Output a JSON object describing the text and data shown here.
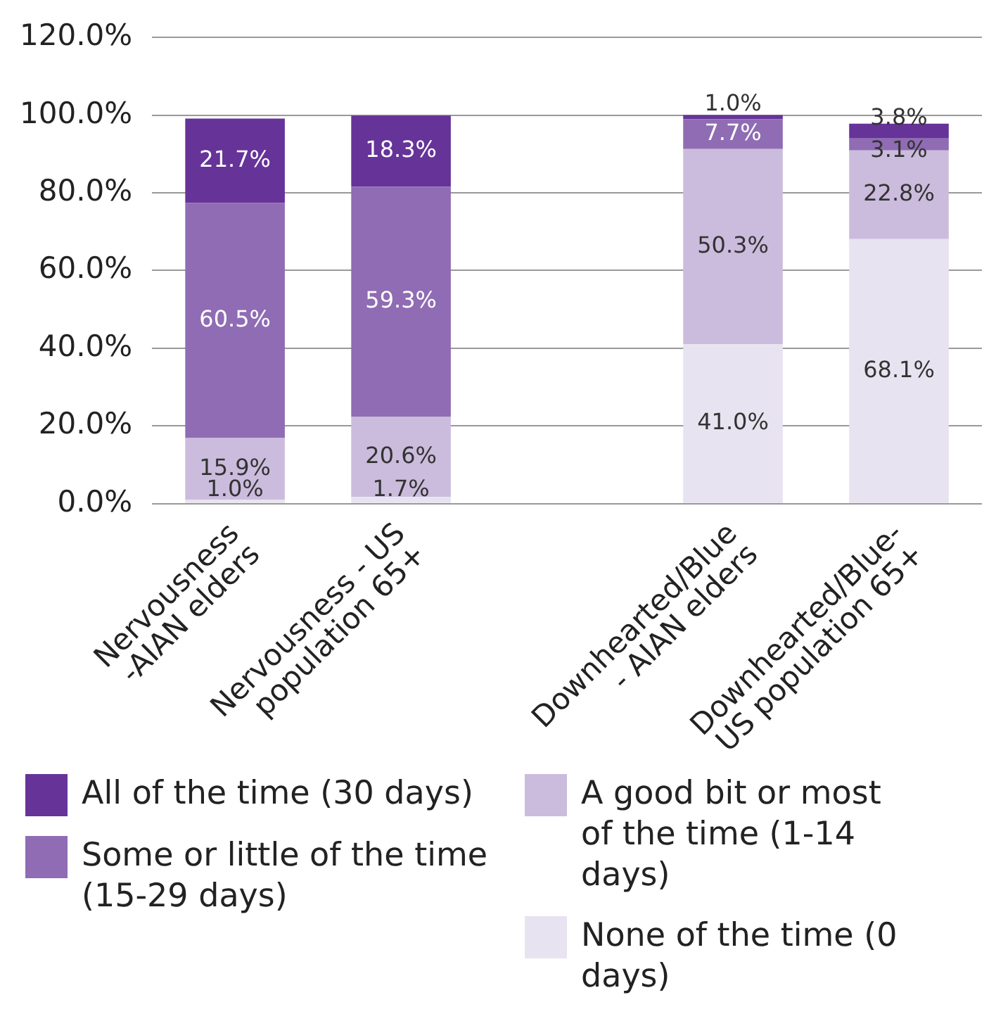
{
  "chart_data": {
    "type": "bar",
    "stacked": true,
    "categories": [
      "Nervousness -AIAN elders",
      "Nervousness - US population 65+",
      null,
      "Downhearted/Blue - AIAN elders",
      "Downhearted/Blue- US population 65+"
    ],
    "series": [
      {
        "name": "None of the time (0 days)",
        "color": "#e8e3f0",
        "values": [
          1.0,
          1.7,
          null,
          41.0,
          68.1
        ],
        "value_labels": [
          "1.0%",
          "1.7%",
          null,
          "41.0%",
          "68.1%"
        ]
      },
      {
        "name": "A good bit or most of the time (1-14 days)",
        "color": "#cbbcdd",
        "values": [
          15.9,
          20.6,
          null,
          50.3,
          22.8
        ],
        "value_labels": [
          "15.9%",
          "20.6%",
          null,
          "50.3%",
          "22.8%"
        ]
      },
      {
        "name": "Some or little of the time (15-29 days)",
        "color": "#8f6cb3",
        "values": [
          60.5,
          59.3,
          null,
          7.7,
          3.1
        ],
        "value_labels": [
          "60.5%",
          "59.3%",
          null,
          "7.7%",
          "3.1%"
        ]
      },
      {
        "name": "All of the time (30 days)",
        "color": "#663399",
        "values": [
          21.7,
          18.3,
          null,
          1.0,
          3.8
        ],
        "value_labels": [
          "21.7%",
          "18.3%",
          null,
          "1.0%",
          "3.8%"
        ]
      }
    ],
    "ylim": [
      0,
      120
    ],
    "yticks": [
      {
        "value": 0,
        "label": "0.0%"
      },
      {
        "value": 20,
        "label": "20.0%"
      },
      {
        "value": 40,
        "label": "40.0%"
      },
      {
        "value": 60,
        "label": "60.0%"
      },
      {
        "value": 80,
        "label": "80.0%"
      },
      {
        "value": 100,
        "label": "100.0%"
      },
      {
        "value": 120,
        "label": "120.0%"
      }
    ],
    "grid": "y",
    "legend": "bottom"
  }
}
